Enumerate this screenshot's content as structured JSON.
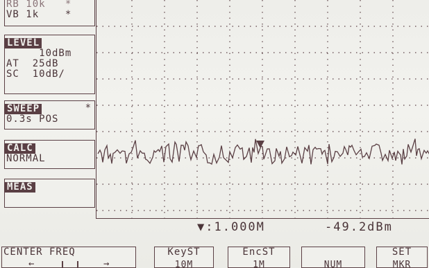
{
  "rbw_panel": {
    "rows": [
      "RB 10k   *",
      "VB 1k    *"
    ]
  },
  "level_panel": {
    "header": "LEVEL",
    "rows": [
      "     10dBm",
      "AT  25dB",
      "SC  10dB/"
    ]
  },
  "sweep_panel": {
    "header": "SWEEP",
    "flag": "*",
    "rows": [
      "0.3s POS"
    ]
  },
  "calc_panel": {
    "header": "CALC",
    "rows": [
      "NORMAL"
    ]
  },
  "meas_panel": {
    "header": "MEAS"
  },
  "marker": {
    "symbol": "▼",
    "frequency": ":1.000M",
    "level": "-49.2dBm"
  },
  "softkeys": {
    "center_freq": {
      "label": "CENTER FREQ",
      "left_arrow": "←",
      "right_arrow": "→"
    },
    "key_step": {
      "label": "KeyST",
      "value": "10M"
    },
    "enc_step": {
      "label": "EncST",
      "value": "1M"
    },
    "blank": {
      "label": "",
      "value": "NUM"
    },
    "set_mkr": {
      "label": "SET",
      "value": "MKR"
    }
  },
  "colors": {
    "ink": "#5a3f44",
    "screen": "#f0f0ec"
  }
}
